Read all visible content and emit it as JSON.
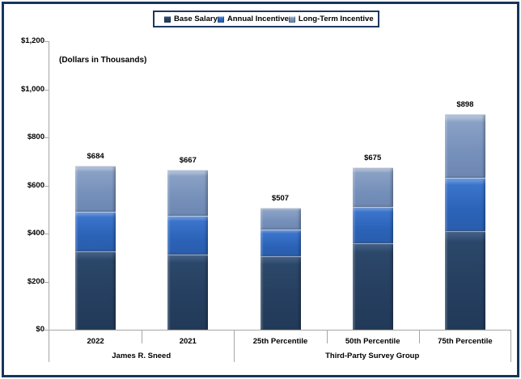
{
  "frame": {
    "border_color": "#16365C",
    "background": "#FFFFFF"
  },
  "chart_data": {
    "type": "bar",
    "stacked": true,
    "units_note": "(Dollars in Thousands)",
    "grid": false,
    "legend_position": "top",
    "categories": [
      "2022",
      "2021",
      "25th Percentile",
      "50th Percentile",
      "75th Percentile"
    ],
    "category_groups": [
      {
        "label": "James R. Sneed",
        "span": [
          0,
          1
        ]
      },
      {
        "label": "Third-Party Survey Group",
        "span": [
          2,
          4
        ]
      }
    ],
    "series": [
      {
        "name": "Base Salary",
        "color": "#27425F",
        "values": [
          325,
          312,
          307,
          360,
          411
        ]
      },
      {
        "name": "Annual Incentive",
        "color": "#2A66C0",
        "values": [
          165,
          163,
          110,
          152,
          220
        ]
      },
      {
        "name": "Long-Term Incentive",
        "color": "#7089B3",
        "values": [
          194,
          192,
          90,
          163,
          267
        ]
      }
    ],
    "totals": [
      684,
      667,
      507,
      675,
      898
    ],
    "total_labels": [
      "$684",
      "$667",
      "$507",
      "$675",
      "$898"
    ],
    "y_axis": {
      "min": 0,
      "max": 1200,
      "step": 200,
      "tick_labels": [
        "$0",
        "$200",
        "$400",
        "$600",
        "$800",
        "$1,000",
        "$1,200"
      ]
    }
  }
}
